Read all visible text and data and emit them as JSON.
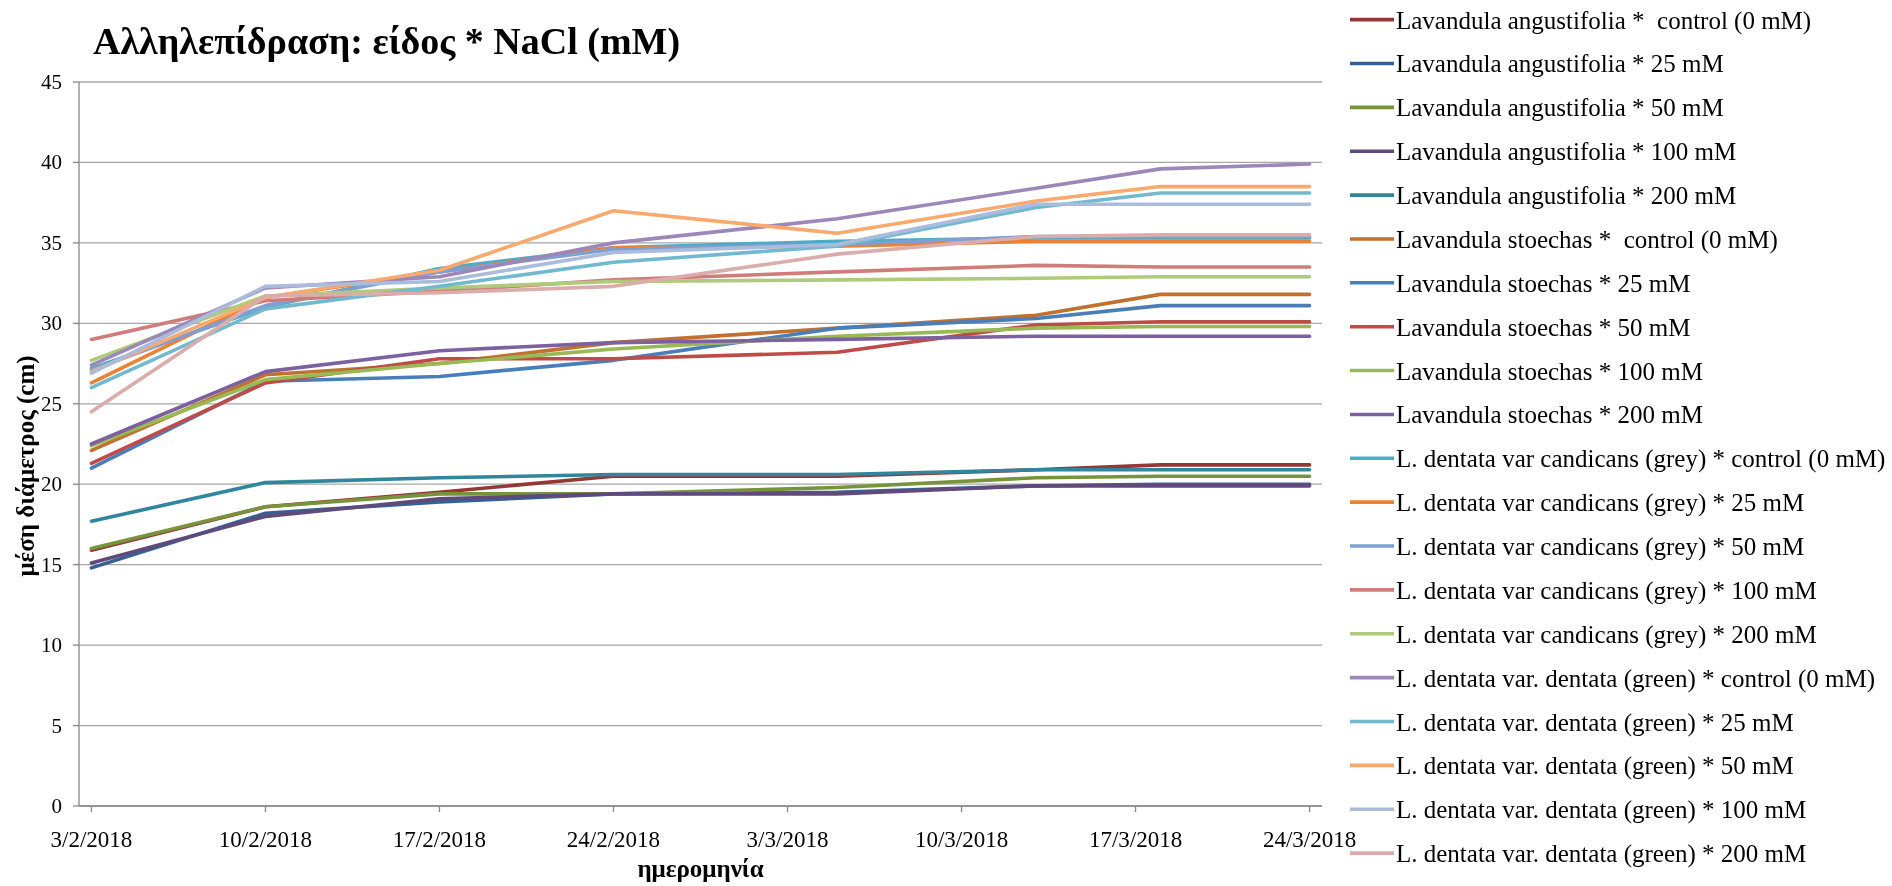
{
  "chart_data": {
    "type": "line",
    "title": "Αλληλεπίδραση: είδος * NaCl (mM)",
    "xlabel": "ημερομηνία",
    "ylabel": "μέση διάμετρος (cm)",
    "x": [
      "2018-02-03",
      "2018-02-10",
      "2018-02-17",
      "2018-02-24",
      "2018-03-05",
      "2018-03-13",
      "2018-03-18",
      "2018-03-24"
    ],
    "xlim": [
      "2018-02-02T12:00",
      "2018-03-24T12:00"
    ],
    "xticks": [
      {
        "value": "2018-02-03",
        "label": "3/2/2018"
      },
      {
        "value": "2018-02-10",
        "label": "10/2/2018"
      },
      {
        "value": "2018-02-17",
        "label": "17/2/2018"
      },
      {
        "value": "2018-02-24",
        "label": "24/2/2018"
      },
      {
        "value": "2018-03-03",
        "label": "3/3/2018"
      },
      {
        "value": "2018-03-10",
        "label": "10/3/2018"
      },
      {
        "value": "2018-03-17",
        "label": "17/3/2018"
      },
      {
        "value": "2018-03-24",
        "label": "24/3/2018"
      }
    ],
    "ylim": [
      0,
      45
    ],
    "yticks": [
      0,
      5,
      10,
      15,
      20,
      25,
      30,
      35,
      40,
      45
    ],
    "grid": "y",
    "legend": "right",
    "series": [
      {
        "name": "Lavandula angustifolia *  control (0 mM)",
        "color": "#953735",
        "values": [
          15.9,
          18.6,
          19.5,
          20.5,
          20.5,
          20.9,
          21.2,
          21.2
        ]
      },
      {
        "name": "Lavandula angustifolia * 25 mM",
        "color": "#376092",
        "values": [
          14.8,
          18.2,
          18.9,
          19.4,
          19.5,
          19.9,
          20.0,
          20.0
        ]
      },
      {
        "name": "Lavandula angustifolia * 50 mM",
        "color": "#77933c",
        "values": [
          16.0,
          18.6,
          19.4,
          19.4,
          19.8,
          20.4,
          20.5,
          20.5
        ]
      },
      {
        "name": "Lavandula angustifolia * 100 mM",
        "color": "#604a7b",
        "values": [
          15.1,
          18.0,
          19.1,
          19.4,
          19.4,
          19.9,
          19.9,
          19.9
        ]
      },
      {
        "name": "Lavandula angustifolia * 200 mM",
        "color": "#31859c",
        "values": [
          17.7,
          20.1,
          20.4,
          20.6,
          20.6,
          20.9,
          20.9,
          20.9
        ]
      },
      {
        "name": "Lavandula stoechas *  control (0 mM)",
        "color": "#c0712f",
        "values": [
          22.1,
          26.8,
          27.5,
          28.8,
          29.7,
          30.5,
          31.8,
          31.8
        ]
      },
      {
        "name": "Lavandula stoechas * 25 mM",
        "color": "#4a7ebb",
        "values": [
          21.0,
          26.4,
          26.7,
          27.7,
          29.7,
          30.3,
          31.1,
          31.1
        ]
      },
      {
        "name": "Lavandula stoechas * 50 mM",
        "color": "#be4b48",
        "values": [
          21.3,
          26.3,
          27.8,
          27.8,
          28.2,
          29.9,
          30.1,
          30.1
        ]
      },
      {
        "name": "Lavandula stoechas * 100 mM",
        "color": "#98b954",
        "values": [
          22.4,
          26.5,
          27.5,
          28.4,
          29.2,
          29.7,
          29.8,
          29.8
        ]
      },
      {
        "name": "Lavandula stoechas * 200 mM",
        "color": "#7d60a0",
        "values": [
          22.5,
          27.0,
          28.3,
          28.8,
          29.0,
          29.2,
          29.2,
          29.2
        ]
      },
      {
        "name": "L. dentata var candicans (grey) * control (0 mM)",
        "color": "#4bacc6",
        "values": [
          27.2,
          31.0,
          33.4,
          34.7,
          35.1,
          35.3,
          35.3,
          35.3
        ]
      },
      {
        "name": "L. dentata var candicans (grey) * 25 mM",
        "color": "#ec8133",
        "values": [
          26.3,
          31.6,
          33.2,
          34.7,
          34.8,
          35.1,
          35.1,
          35.1
        ]
      },
      {
        "name": "L. dentata var candicans (grey) * 50 mM",
        "color": "#7f9fd2",
        "values": [
          27.1,
          31.1,
          33.2,
          34.6,
          34.9,
          35.4,
          35.4,
          35.4
        ]
      },
      {
        "name": "L. dentata var candicans (grey) * 100 mM",
        "color": "#d07c7a",
        "values": [
          29.0,
          31.4,
          32.0,
          32.7,
          33.2,
          33.6,
          33.5,
          33.5
        ]
      },
      {
        "name": "L. dentata var candicans (grey) * 200 mM",
        "color": "#afca7b",
        "values": [
          27.7,
          31.7,
          32.2,
          32.6,
          32.7,
          32.8,
          32.9,
          32.9
        ]
      },
      {
        "name": "L. dentata var. dentata (green) * control (0 mM)",
        "color": "#9b87b9",
        "values": [
          27.4,
          32.2,
          32.9,
          35.0,
          36.5,
          38.4,
          39.6,
          39.9
        ]
      },
      {
        "name": "L. dentata var. dentata (green) * 25 mM",
        "color": "#72b9d0",
        "values": [
          26.0,
          30.9,
          32.3,
          33.8,
          34.8,
          37.2,
          38.1,
          38.1
        ]
      },
      {
        "name": "L. dentata var. dentata (green) * 50 mM",
        "color": "#f9a86e",
        "values": [
          27.0,
          31.6,
          33.3,
          37.0,
          35.6,
          37.6,
          38.5,
          38.5
        ]
      },
      {
        "name": "L. dentata var. dentata (green) * 100 mM",
        "color": "#aabbdc",
        "values": [
          26.9,
          32.3,
          32.6,
          34.4,
          34.9,
          37.4,
          37.4,
          37.4
        ]
      },
      {
        "name": "L. dentata var. dentata (green) * 200 mM",
        "color": "#dbacac",
        "values": [
          24.5,
          31.7,
          31.9,
          32.3,
          34.3,
          35.4,
          35.5,
          35.5
        ]
      }
    ]
  }
}
